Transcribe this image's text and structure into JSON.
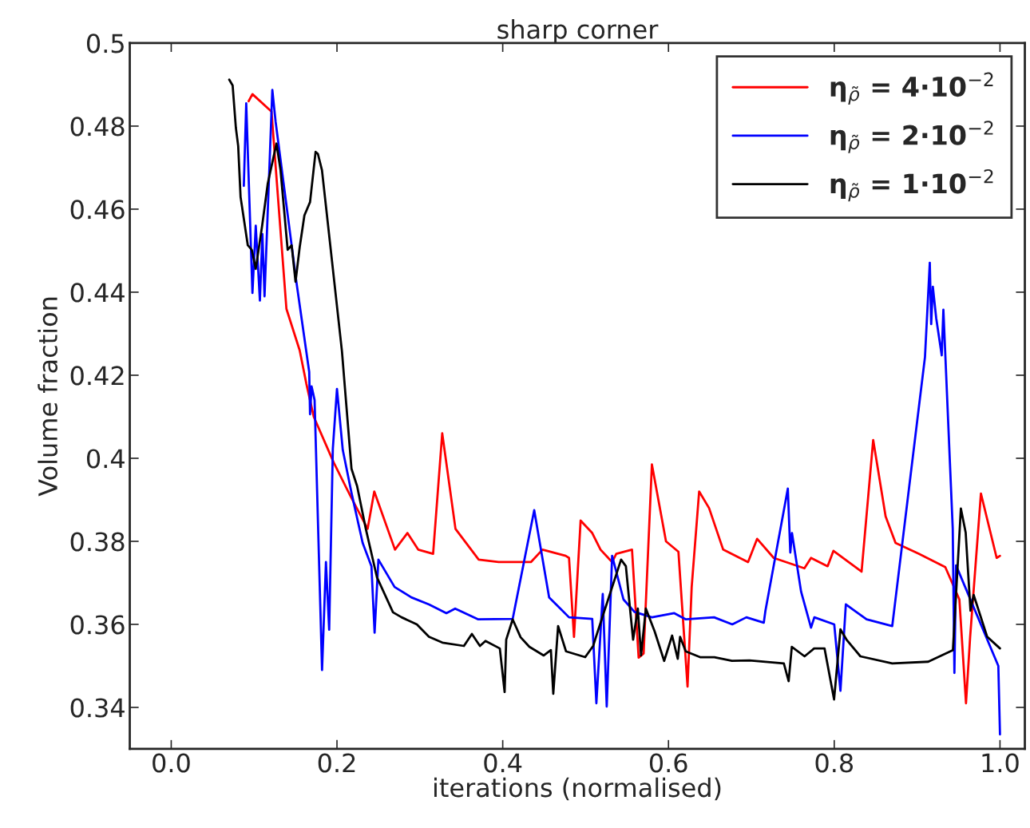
{
  "chart_data": {
    "type": "line",
    "title": "sharp corner",
    "xlabel": "iterations (normalised)",
    "ylabel": "Volume fraction",
    "xlim": [
      -0.05,
      1.03
    ],
    "ylim": [
      0.33,
      0.5
    ],
    "xticks": [
      {
        "value": 0,
        "label": "0.0"
      },
      0.2,
      0.4,
      0.6,
      0.8,
      {
        "value": 1,
        "label": "1.0"
      }
    ],
    "yticks": [
      0.34,
      0.36,
      0.38,
      0.4,
      0.42,
      0.44,
      0.46,
      0.48,
      0.5
    ],
    "grid": false,
    "legend": "top right",
    "marker": "none",
    "line_style": "solid",
    "series": [
      {
        "name": "η$_{ρ̃}$ = 4·10$^{−2}$",
        "color": "#ff0000",
        "x": [
          0.0934,
          0.098,
          0.101,
          0.108,
          0.1155,
          0.121,
          0.139,
          0.155,
          0.163,
          0.172,
          0.196,
          0.216,
          0.237,
          0.245,
          0.27,
          0.285,
          0.298,
          0.316,
          0.327,
          0.343,
          0.371,
          0.395,
          0.415,
          0.434,
          0.448,
          0.476,
          0.48,
          0.486,
          0.494,
          0.508,
          0.518,
          0.532,
          0.537,
          0.556,
          0.564,
          0.57,
          0.58,
          0.597,
          0.612,
          0.623,
          0.628,
          0.637,
          0.649,
          0.666,
          0.696,
          0.707,
          0.727,
          0.764,
          0.772,
          0.792,
          0.799,
          0.809,
          0.818,
          0.827,
          0.833,
          0.847,
          0.862,
          0.874,
          0.902,
          0.934,
          0.951,
          0.959,
          0.964,
          0.977,
          0.996,
          1.0
        ],
        "values": [
          0.486,
          0.4877,
          null,
          null,
          null,
          0.4835,
          0.436,
          0.426,
          0.418,
          0.41,
          0.399,
          0.391,
          0.383,
          0.392,
          0.378,
          0.382,
          0.378,
          0.377,
          0.406,
          0.383,
          0.3756,
          0.375,
          0.375,
          0.375,
          0.378,
          0.3765,
          0.376,
          0.357,
          0.385,
          0.382,
          0.378,
          0.375,
          0.377,
          0.378,
          0.352,
          0.353,
          0.3985,
          0.38,
          0.3775,
          0.345,
          0.369,
          0.392,
          0.388,
          0.378,
          0.375,
          0.3806,
          0.376,
          0.3735,
          0.376,
          0.374,
          0.3777,
          null,
          null,
          null,
          0.3727,
          0.4044,
          0.386,
          0.3796,
          0.377,
          0.3738,
          0.366,
          0.341,
          0.357,
          0.3915,
          0.376,
          0.3765
        ]
      },
      {
        "name": "η$_{ρ̃}$ = 2·10$^{−2}$",
        "color": "#0000ff",
        "x": [
          0.0876,
          0.0905,
          0.098,
          0.102,
          0.107,
          0.11,
          0.1126,
          0.122,
          0.126,
          0.151,
          0.1665,
          0.1675,
          0.1694,
          0.173,
          0.182,
          0.1867,
          0.1906,
          0.195,
          0.2,
          0.207,
          0.2175,
          0.231,
          0.2416,
          0.2454,
          0.25,
          0.2695,
          0.2897,
          0.311,
          0.332,
          0.3426,
          0.3705,
          0.412,
          0.4196,
          0.423,
          0.4273,
          0.438,
          0.456,
          0.48,
          0.508,
          0.513,
          0.5207,
          0.5255,
          0.532,
          0.5457,
          0.559,
          0.58,
          0.607,
          0.621,
          0.655,
          0.677,
          0.694,
          0.715,
          0.717,
          0.72,
          0.728,
          0.7353,
          0.744,
          0.747,
          0.749,
          0.76,
          0.772,
          0.776,
          0.8,
          0.8075,
          0.814,
          0.839,
          0.87,
          0.874,
          0.886,
          0.899,
          0.9095,
          0.9153,
          0.917,
          0.919,
          0.923,
          0.9297,
          0.9317,
          0.943,
          0.945,
          0.947,
          0.955,
          0.975,
          0.9952,
          0.998,
          1.0
        ],
        "values": [
          0.4656,
          0.4855,
          0.4398,
          0.456,
          0.438,
          0.454,
          0.439,
          0.4887,
          0.481,
          0.4425,
          0.4208,
          0.4106,
          0.4173,
          0.414,
          0.349,
          0.375,
          0.3587,
          0.4023,
          0.4167,
          0.402,
          0.3917,
          0.3796,
          0.374,
          0.358,
          0.3756,
          0.369,
          0.3665,
          0.3648,
          0.3627,
          0.3638,
          0.3612,
          0.3613,
          null,
          null,
          null,
          0.3875,
          0.3665,
          0.3617,
          0.3613,
          0.341,
          0.3673,
          0.3402,
          0.3765,
          0.366,
          0.363,
          0.3617,
          0.3627,
          0.3612,
          0.3617,
          0.36,
          0.3617,
          0.3604,
          0.3633,
          null,
          null,
          null,
          0.3927,
          0.3773,
          0.382,
          0.3679,
          0.3592,
          0.3617,
          0.36,
          0.344,
          0.3648,
          0.3612,
          0.3596,
          null,
          null,
          null,
          0.4244,
          0.4471,
          0.4323,
          0.4413,
          0.4338,
          0.4248,
          0.4358,
          0.383,
          0.3483,
          0.3742,
          null,
          null,
          null,
          0.35,
          0.3335
        ]
      },
      {
        "name": "η$_{ρ̃}$ = 1·10$^{−2}$",
        "color": "#000000",
        "x": [
          0.07,
          0.0741,
          0.078,
          0.0808,
          0.0837,
          0.0924,
          0.0972,
          0.102,
          0.1097,
          0.1165,
          0.127,
          0.1319,
          0.1405,
          0.1453,
          0.15,
          0.155,
          0.1607,
          0.1675,
          0.1742,
          0.177,
          0.1819,
          0.206,
          0.2175,
          0.2243,
          0.2348,
          0.2483,
          0.2676,
          0.278,
          0.2964,
          0.311,
          0.3272,
          0.3532,
          0.3628,
          0.3725,
          0.3792,
          0.3965,
          0.4023,
          0.4042,
          0.412,
          0.4216,
          0.4321,
          0.4495,
          0.4581,
          0.461,
          0.4668,
          0.4764,
          0.4995,
          0.5091,
          0.514,
          0.5197,
          0.526,
          0.5322,
          0.5428,
          0.5486,
          0.5525,
          0.5573,
          0.563,
          0.5669,
          0.5727,
          0.5833,
          0.5948,
          0.6044,
          0.6112,
          0.614,
          0.6208,
          0.6381,
          0.6554,
          0.6766,
          0.6978,
          0.7392,
          0.745,
          0.7488,
          0.7642,
          0.7757,
          0.7883,
          0.7998,
          0.8075,
          0.8152,
          0.8316,
          0.87,
          0.9134,
          0.923,
          0.93,
          0.9374,
          0.9432,
          0.9528,
          0.9586,
          0.9644,
          0.9682,
          0.9846,
          1.0
        ],
        "values": [
          0.4912,
          0.4898,
          0.4796,
          0.4752,
          0.4629,
          0.4513,
          0.4502,
          0.4456,
          0.456,
          0.4662,
          0.4758,
          0.4694,
          0.4502,
          0.4513,
          0.4425,
          0.4508,
          0.4585,
          0.4617,
          0.4738,
          0.4733,
          0.4694,
          0.4258,
          0.3975,
          0.3933,
          0.383,
          0.3713,
          0.3629,
          0.3617,
          0.36,
          0.357,
          0.3556,
          0.3548,
          0.3577,
          0.3548,
          0.356,
          0.3542,
          0.3437,
          0.3563,
          0.3612,
          0.3569,
          0.3546,
          0.3525,
          0.3538,
          0.3433,
          0.3596,
          0.3535,
          0.3521,
          0.3548,
          0.3579,
          null,
          null,
          null,
          0.3756,
          0.374,
          0.366,
          0.3563,
          0.3638,
          0.3525,
          0.3638,
          0.3583,
          0.3512,
          0.3573,
          0.3517,
          0.357,
          0.3535,
          0.3521,
          0.3521,
          0.3512,
          0.3513,
          0.3506,
          0.3463,
          0.3546,
          0.3523,
          0.3542,
          0.3542,
          0.3419,
          0.3588,
          0.3562,
          0.3523,
          0.3506,
          0.351,
          null,
          null,
          null,
          0.3538,
          0.3879,
          0.3821,
          0.3633,
          0.3671,
          0.357,
          0.3542
        ]
      }
    ]
  }
}
